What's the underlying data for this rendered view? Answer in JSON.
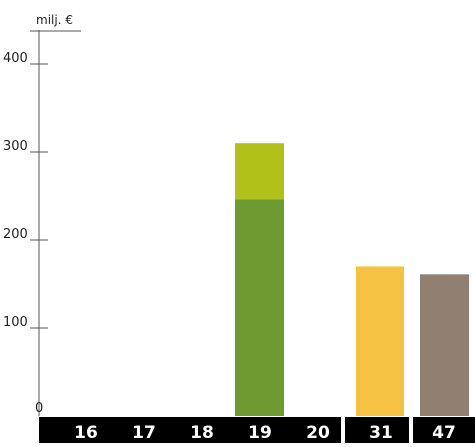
{
  "chart_data": {
    "type": "bar",
    "stacked": true,
    "ylabel": "milj. €",
    "ylim": [
      0,
      400
    ],
    "yticks": [
      0,
      100,
      200,
      300,
      400
    ],
    "grid": false,
    "legend": "none",
    "categories": [
      "16",
      "17",
      "18",
      "19",
      "20",
      "31",
      "47"
    ],
    "series": [
      {
        "color": "#6e9a32",
        "values": [
          0,
          0,
          0,
          246,
          0,
          0,
          0
        ]
      },
      {
        "color": "#b2c01a",
        "values": [
          0,
          0,
          0,
          64,
          0,
          0,
          0
        ]
      },
      {
        "color": "#f6c244",
        "values": [
          0,
          0,
          0,
          0,
          0,
          170,
          0
        ]
      },
      {
        "color": "#917f72",
        "values": [
          0,
          0,
          0,
          0,
          0,
          0,
          161
        ]
      }
    ],
    "colors": {
      "axis": "#555555",
      "category_band": "#000000",
      "category_text": "#ffffff",
      "background": "#ffffff"
    }
  }
}
